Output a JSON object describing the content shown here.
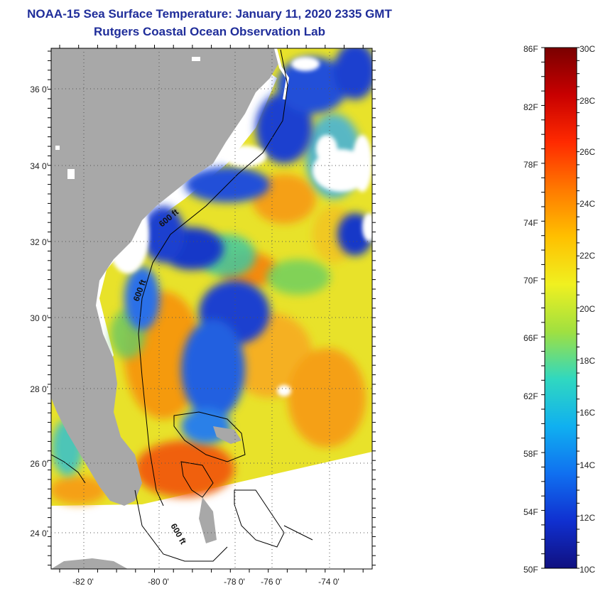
{
  "title": {
    "line1": "NOAA-15 Sea Surface Temperature:  January 11, 2020 2335 GMT",
    "line2": "Rutgers Coastal Ocean Observation Lab"
  },
  "map": {
    "lat_labels": [
      "36 0'",
      "34 0'",
      "32 0'",
      "30 0'",
      "28 0'",
      "26 0'",
      "24 0'"
    ],
    "lon_labels": [
      "-82 0'",
      "-80 0'",
      "-78 0'",
      "-76 0'",
      "-74 0'"
    ],
    "contour_labels": [
      "600 ft",
      "600 ft",
      "600 ft"
    ],
    "colors": {
      "land": "#a8a8a8",
      "cloud": "#ffffff",
      "cold": "#1a3fcf",
      "cool": "#2f8cf0",
      "mid": "#f2e020",
      "warm": "#f59a10",
      "hot": "#f06010"
    }
  },
  "colorbar": {
    "fahrenheit_labels": [
      "86F",
      "82F",
      "78F",
      "74F",
      "70F",
      "66F",
      "62F",
      "58F",
      "54F",
      "50F"
    ],
    "celsius_labels": [
      "30C",
      "28C",
      "26C",
      "24C",
      "22C",
      "20C",
      "18C",
      "16C",
      "14C",
      "12C",
      "10C"
    ],
    "gradient_colors": [
      "#7a0000",
      "#c80000",
      "#ff2a00",
      "#ff7a00",
      "#ffc000",
      "#f0f020",
      "#a0e040",
      "#30d8c0",
      "#10b0f0",
      "#1070f0",
      "#1030d0",
      "#101080"
    ]
  }
}
